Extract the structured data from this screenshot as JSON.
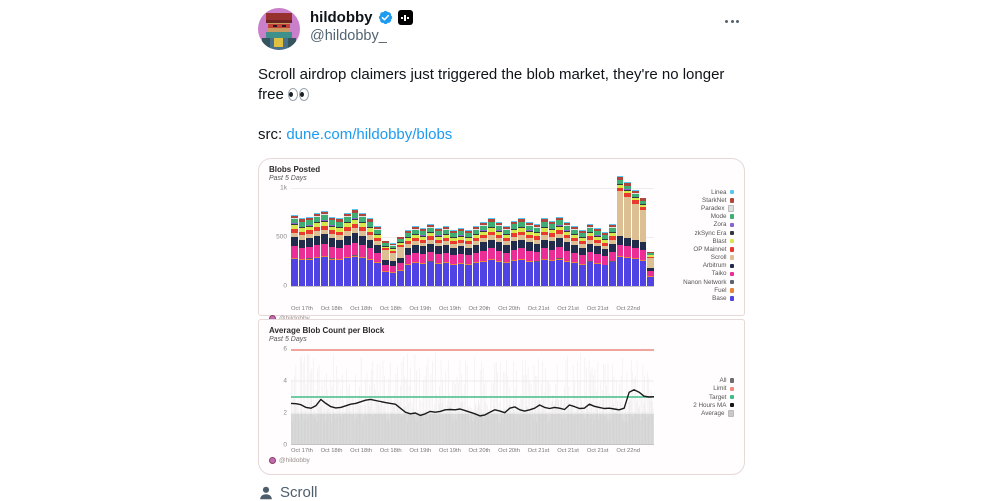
{
  "tweet": {
    "display_name": "hildobby",
    "handle": "@hildobby_",
    "text": "Scroll airdrop claimers just triggered the blob market, they're no longer free",
    "emoji": "eyes",
    "src_prefix": "src:",
    "src_link": "dune.com/hildobby/blobs",
    "footer_tag": "Scroll"
  },
  "icons": {
    "verified": "verified-badge-icon",
    "affiliate": "affiliate-badge-icon",
    "more": "more-ellipsis-icon",
    "person": "person-icon",
    "eyes": "eyes-emoji",
    "watermark_avatar": "mini-avatar-icon"
  },
  "colors": {
    "text": "#0f1419",
    "secondary": "#536471",
    "link": "#1d9bf0",
    "verified": "#1d9bf0",
    "panel_border": "#e6d9d7"
  },
  "chart_data": [
    {
      "type": "bar",
      "stacked": true,
      "title": "Blobs Posted",
      "subtitle": "Past 5 Days",
      "watermark": "@hildobby",
      "ylim": [
        0,
        1000
      ],
      "yticks": [
        "0",
        "500",
        "1k"
      ],
      "categories": [
        "Oct 17th",
        "Oct 18th",
        "Oct 18th",
        "Oct 18th",
        "Oct 19th",
        "Oct 19th",
        "Oct 20th",
        "Oct 20th",
        "Oct 21st",
        "Oct 21st",
        "Oct 21st",
        "Oct 22nd"
      ],
      "legend": [
        {
          "name": "Linea",
          "color": "#58c8f0"
        },
        {
          "name": "StarkNet",
          "color": "#b0453c"
        },
        {
          "name": "Paradex",
          "color": "#e0e0e0"
        },
        {
          "name": "Mode",
          "color": "#3fae74"
        },
        {
          "name": "Zora",
          "color": "#8a63d2"
        },
        {
          "name": "zkSync Era",
          "color": "#33383f"
        },
        {
          "name": "Blast",
          "color": "#d7e84c"
        },
        {
          "name": "OP Mainnet",
          "color": "#e93a2d"
        },
        {
          "name": "Scroll",
          "color": "#dcbf92"
        },
        {
          "name": "Arbitrum",
          "color": "#212c4c"
        },
        {
          "name": "Taiko",
          "color": "#ea2e96"
        },
        {
          "name": "Nanon Network",
          "color": "#5a6472"
        },
        {
          "name": "Fuel",
          "color": "#e8833a"
        },
        {
          "name": "Base",
          "color": "#4f43e3"
        }
      ],
      "stack_order": [
        "Base",
        "Fuel",
        "Nanon Network",
        "Taiko",
        "Arbitrum",
        "Scroll",
        "OP Mainnet",
        "Blast",
        "zkSync Era",
        "Zora",
        "Mode",
        "Paradex",
        "StarkNet",
        "Linea"
      ],
      "bars": [
        [
          278,
          10,
          3,
          115,
          96,
          44,
          41,
          37,
          11,
          6,
          48,
          4,
          26,
          9
        ],
        [
          263,
          9,
          3,
          109,
          91,
          42,
          39,
          35,
          11,
          6,
          46,
          4,
          25,
          8
        ],
        [
          270,
          9,
          3,
          112,
          94,
          43,
          40,
          36,
          11,
          6,
          47,
          4,
          25,
          9
        ],
        [
          285,
          10,
          3,
          118,
          99,
          46,
          42,
          38,
          11,
          6,
          49,
          5,
          27,
          9
        ],
        [
          293,
          10,
          3,
          121,
          101,
          47,
          43,
          39,
          12,
          6,
          51,
          5,
          27,
          9
        ],
        [
          270,
          9,
          3,
          112,
          94,
          43,
          40,
          36,
          11,
          6,
          47,
          4,
          25,
          9
        ],
        [
          263,
          9,
          3,
          109,
          91,
          42,
          39,
          35,
          11,
          6,
          46,
          4,
          25,
          8
        ],
        [
          285,
          10,
          3,
          118,
          99,
          46,
          42,
          38,
          11,
          6,
          49,
          5,
          27,
          9
        ],
        [
          300,
          10,
          3,
          124,
          104,
          48,
          44,
          40,
          12,
          6,
          52,
          5,
          28,
          10
        ],
        [
          285,
          10,
          3,
          118,
          99,
          46,
          42,
          38,
          11,
          6,
          49,
          5,
          27,
          9
        ],
        [
          263,
          9,
          3,
          109,
          91,
          42,
          39,
          35,
          11,
          6,
          46,
          4,
          25,
          8
        ],
        [
          233,
          8,
          2,
          96,
          81,
          37,
          34,
          31,
          9,
          5,
          40,
          4,
          22,
          7
        ],
        [
          144,
          6,
          2,
          62,
          53,
          96,
          22,
          18,
          7,
          4,
          26,
          3,
          15,
          6
        ],
        [
          135,
          6,
          2,
          58,
          50,
          90,
          21,
          17,
          7,
          4,
          24,
          3,
          14,
          5
        ],
        [
          156,
          7,
          2,
          68,
          57,
          104,
          24,
          19,
          8,
          4,
          28,
          3,
          16,
          6
        ],
        [
          218,
          8,
          2,
          90,
          75,
          35,
          32,
          29,
          9,
          5,
          38,
          3,
          20,
          7
        ],
        [
          233,
          8,
          2,
          96,
          81,
          37,
          34,
          31,
          9,
          5,
          40,
          4,
          22,
          7
        ],
        [
          225,
          8,
          2,
          93,
          78,
          36,
          33,
          30,
          9,
          5,
          39,
          4,
          21,
          7
        ],
        [
          240,
          8,
          3,
          99,
          83,
          38,
          35,
          32,
          10,
          5,
          42,
          4,
          22,
          8
        ],
        [
          225,
          8,
          2,
          93,
          78,
          36,
          33,
          30,
          9,
          5,
          39,
          4,
          21,
          7
        ],
        [
          233,
          8,
          2,
          96,
          81,
          37,
          34,
          31,
          9,
          5,
          40,
          4,
          22,
          7
        ],
        [
          218,
          8,
          2,
          90,
          75,
          35,
          32,
          29,
          9,
          5,
          38,
          3,
          20,
          7
        ],
        [
          225,
          8,
          2,
          93,
          78,
          36,
          33,
          30,
          9,
          5,
          39,
          4,
          21,
          7
        ],
        [
          218,
          8,
          2,
          90,
          75,
          35,
          32,
          29,
          9,
          5,
          38,
          3,
          20,
          7
        ],
        [
          233,
          8,
          2,
          96,
          81,
          37,
          34,
          31,
          9,
          5,
          40,
          4,
          22,
          7
        ],
        [
          248,
          9,
          3,
          102,
          86,
          40,
          36,
          33,
          10,
          5,
          43,
          4,
          23,
          8
        ],
        [
          263,
          9,
          3,
          109,
          91,
          42,
          39,
          35,
          11,
          6,
          46,
          4,
          25,
          8
        ],
        [
          248,
          9,
          3,
          102,
          86,
          40,
          36,
          33,
          10,
          5,
          43,
          4,
          23,
          8
        ],
        [
          233,
          8,
          2,
          96,
          81,
          37,
          34,
          31,
          9,
          5,
          40,
          4,
          22,
          7
        ],
        [
          255,
          9,
          3,
          105,
          88,
          41,
          37,
          34,
          10,
          5,
          44,
          4,
          24,
          8
        ],
        [
          263,
          9,
          3,
          109,
          91,
          42,
          39,
          35,
          11,
          6,
          46,
          4,
          25,
          8
        ],
        [
          248,
          9,
          3,
          102,
          86,
          40,
          36,
          33,
          10,
          5,
          43,
          4,
          23,
          8
        ],
        [
          240,
          8,
          3,
          99,
          83,
          38,
          35,
          32,
          10,
          5,
          42,
          4,
          22,
          8
        ],
        [
          263,
          9,
          3,
          109,
          91,
          42,
          39,
          35,
          11,
          6,
          46,
          4,
          25,
          8
        ],
        [
          255,
          9,
          3,
          105,
          88,
          41,
          37,
          34,
          10,
          5,
          44,
          4,
          24,
          8
        ],
        [
          270,
          9,
          3,
          112,
          94,
          43,
          40,
          36,
          11,
          6,
          47,
          4,
          25,
          9
        ],
        [
          248,
          9,
          3,
          102,
          86,
          40,
          36,
          33,
          10,
          5,
          43,
          4,
          23,
          8
        ],
        [
          233,
          8,
          2,
          96,
          81,
          37,
          34,
          31,
          9,
          5,
          40,
          4,
          22,
          7
        ],
        [
          218,
          8,
          2,
          90,
          75,
          35,
          32,
          29,
          9,
          5,
          38,
          3,
          20,
          7
        ],
        [
          240,
          8,
          3,
          99,
          83,
          38,
          35,
          32,
          10,
          5,
          42,
          4,
          22,
          8
        ],
        [
          225,
          8,
          2,
          93,
          78,
          36,
          33,
          30,
          9,
          5,
          39,
          4,
          21,
          7
        ],
        [
          210,
          7,
          2,
          87,
          73,
          34,
          31,
          28,
          8,
          4,
          36,
          3,
          20,
          7
        ],
        [
          240,
          8,
          3,
          99,
          83,
          38,
          35,
          32,
          10,
          5,
          42,
          4,
          22,
          8
        ],
        [
          295,
          10,
          3,
          112,
          92,
          455,
          36,
          26,
          11,
          6,
          34,
          5,
          26,
          9
        ],
        [
          285,
          10,
          3,
          106,
          88,
          420,
          34,
          25,
          10,
          6,
          32,
          5,
          25,
          9
        ],
        [
          272,
          9,
          3,
          100,
          82,
          375,
          33,
          24,
          10,
          5,
          30,
          4,
          24,
          8
        ],
        [
          258,
          9,
          3,
          96,
          80,
          325,
          31,
          22,
          9,
          5,
          29,
          4,
          23,
          8
        ],
        [
          95,
          4,
          1,
          54,
          34,
          96,
          16,
          12,
          5,
          3,
          15,
          2,
          10,
          4
        ]
      ]
    },
    {
      "type": "line",
      "title": "Average Blob Count per Block",
      "subtitle": "Past 5 Days",
      "watermark": "@hildobby",
      "ylim": [
        0,
        6
      ],
      "yticks": [
        "0",
        "2",
        "4",
        "6"
      ],
      "categories": [
        "Oct 17th",
        "Oct 18th",
        "Oct 18th",
        "Oct 18th",
        "Oct 19th",
        "Oct 19th",
        "Oct 20th",
        "Oct 20th",
        "Oct 21st",
        "Oct 21st",
        "Oct 21st",
        "Oct 22nd"
      ],
      "legend": [
        {
          "name": "All",
          "color": "#6e6e6e"
        },
        {
          "name": "Limit",
          "color": "#ef8a7d"
        },
        {
          "name": "Target",
          "color": "#3fbd87"
        },
        {
          "name": "2 Hours MA",
          "color": "#151515"
        },
        {
          "name": "Average",
          "color": "#c9c9c9"
        }
      ],
      "limit_value": 6,
      "target_value": 3,
      "ma_values": [
        2.6,
        2.58,
        2.52,
        2.35,
        2.3,
        2.45,
        2.85,
        2.6,
        2.4,
        2.32,
        2.35,
        2.45,
        2.55,
        2.6,
        2.7,
        2.8,
        2.85,
        2.78,
        2.72,
        2.65,
        2.6,
        2.55,
        2.3,
        2.05,
        1.95,
        2.0,
        1.85,
        1.95,
        2.1,
        2.05,
        2.1,
        2.2,
        2.22,
        2.2,
        2.25,
        2.15,
        2.05,
        1.95,
        1.82,
        1.88,
        2.05,
        2.2,
        2.12,
        2.02,
        2.3,
        2.38,
        2.2,
        2.12,
        2.2,
        2.3,
        2.5,
        2.35,
        2.28,
        2.35,
        2.3,
        2.22,
        2.5,
        2.4,
        2.28,
        2.3,
        2.55,
        2.42,
        2.35,
        2.28,
        2.3,
        2.25,
        2.2,
        2.3,
        3.3,
        3.45,
        3.3,
        3.05,
        3.0,
        3.02
      ]
    }
  ]
}
